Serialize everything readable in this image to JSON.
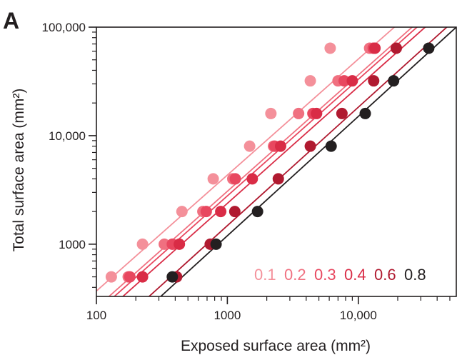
{
  "panel_label": "A",
  "chart_data": {
    "type": "scatter",
    "xlabel": "Exposed surface area (mm²)",
    "ylabel": "Total surface area (mm²)",
    "xscale": "log",
    "yscale": "log",
    "xlim": [
      100,
      56000
    ],
    "ylim": [
      330,
      100000
    ],
    "x_ticks": [
      100,
      1000,
      10000
    ],
    "x_tick_labels": [
      "100",
      "1000",
      "10,000"
    ],
    "y_ticks": [
      1000,
      10000,
      100000
    ],
    "y_tick_labels": [
      "1000",
      "10,000",
      "100,000"
    ],
    "grid": false,
    "legend_position": "bottom-right",
    "series": [
      {
        "name": "0.1",
        "color": "#f4909a",
        "x": [
          130,
          225,
          450,
          780,
          1480,
          2150,
          4300,
          6100
        ],
        "y": [
          500,
          1000,
          2000,
          4000,
          8000,
          16000,
          32000,
          64000
        ],
        "fit": [
          [
            100,
            370
          ],
          [
            56000,
            320000
          ]
        ]
      },
      {
        "name": "0.2",
        "color": "#f07080",
        "x": [
          175,
          330,
          650,
          1100,
          2250,
          3500,
          7000,
          12200
        ],
        "y": [
          500,
          1000,
          2000,
          4000,
          8000,
          16000,
          32000,
          64000
        ],
        "fit": [
          [
            100,
            260
          ],
          [
            56000,
            230000
          ]
        ]
      },
      {
        "name": "0.3",
        "color": "#e8475f",
        "x": [
          180,
          380,
          690,
          1150,
          2300,
          4500,
          7800,
          13000
        ],
        "y": [
          500,
          1000,
          2000,
          4000,
          8000,
          16000,
          32000,
          64000
        ],
        "fit": [
          [
            100,
            235
          ],
          [
            56000,
            210000
          ]
        ]
      },
      {
        "name": "0.4",
        "color": "#d92c46",
        "x": [
          225,
          430,
          890,
          1550,
          2550,
          4800,
          9000,
          13400
        ],
        "y": [
          500,
          1000,
          2000,
          4000,
          8000,
          16000,
          32000,
          64000
        ],
        "fit": [
          [
            100,
            200
          ],
          [
            56000,
            180000
          ]
        ]
      },
      {
        "name": "0.6",
        "color": "#b01a30",
        "x": [
          410,
          740,
          1140,
          2450,
          4300,
          7500,
          13100,
          19500
        ],
        "y": [
          500,
          1000,
          2000,
          4000,
          8000,
          16000,
          32000,
          64000
        ],
        "fit": [
          [
            100,
            120
          ],
          [
            56000,
            120000
          ]
        ]
      },
      {
        "name": "0.8",
        "color": "#231f20",
        "x": [
          380,
          820,
          1700,
          6200,
          11300,
          18600,
          34500
        ],
        "y": [
          500,
          1000,
          2000,
          8000,
          16000,
          32000,
          64000
        ],
        "fit": [
          [
            100,
            95
          ],
          [
            56000,
            100000
          ]
        ]
      }
    ]
  }
}
